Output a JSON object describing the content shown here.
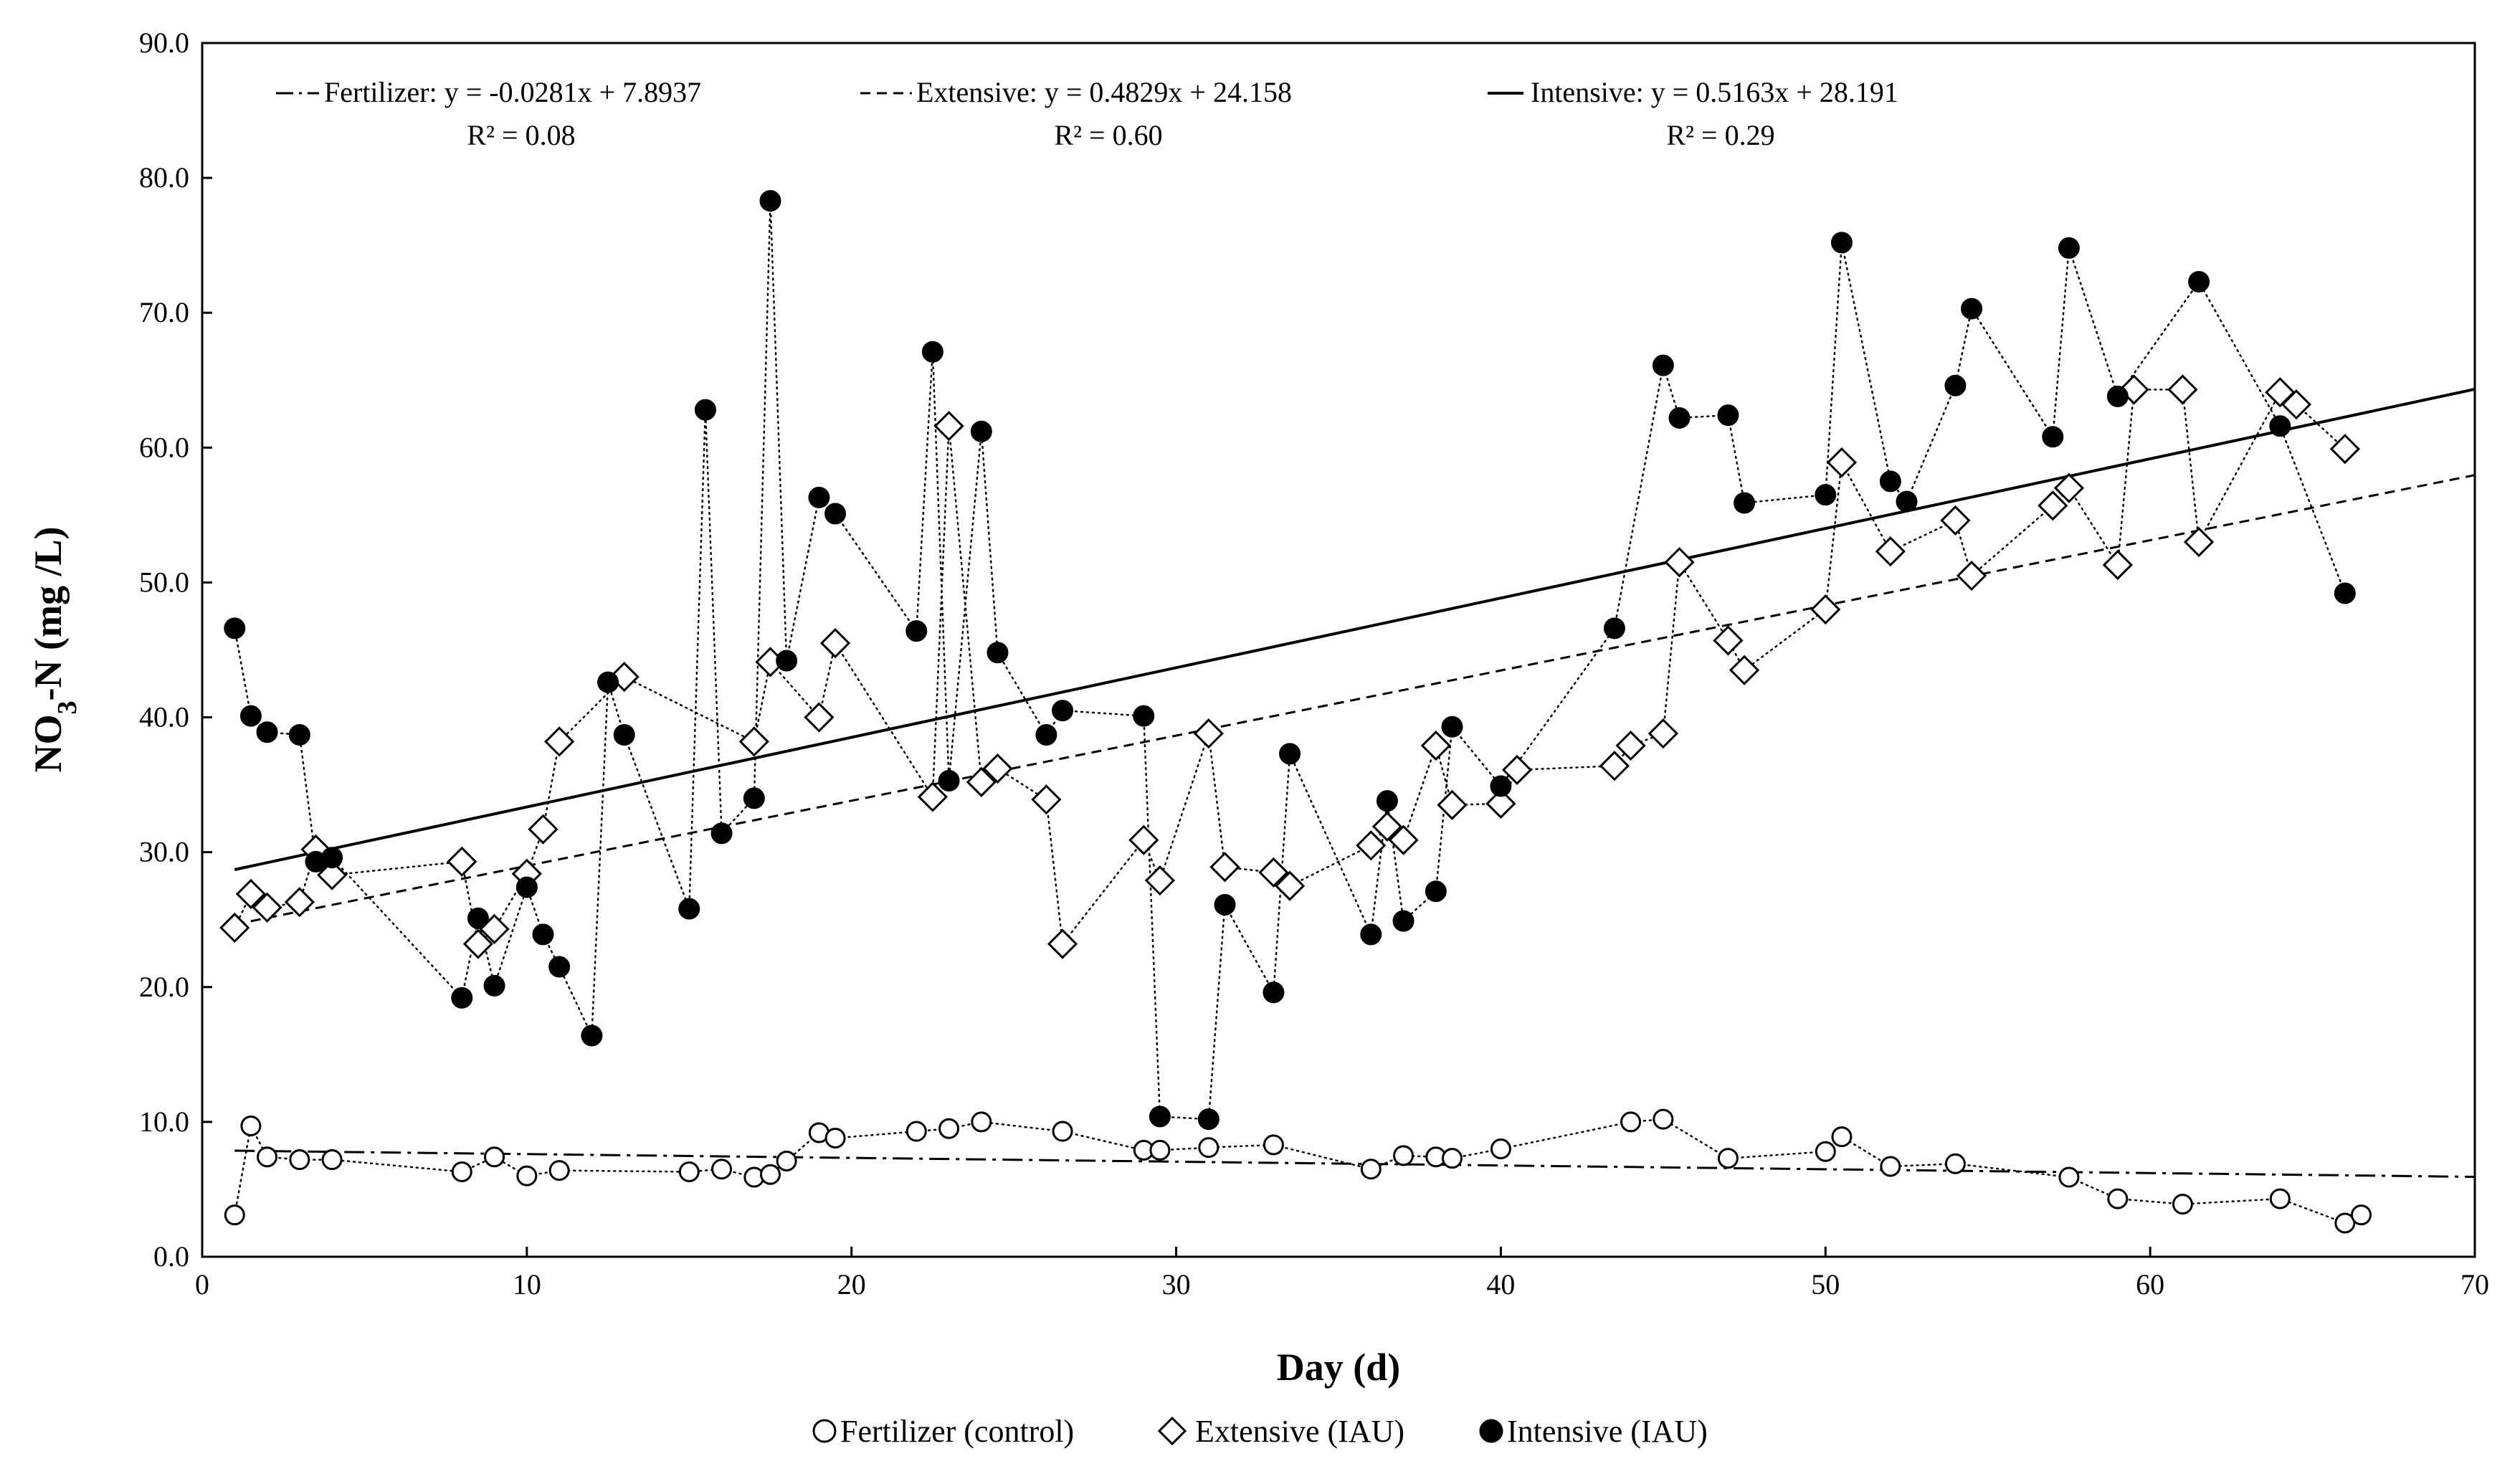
{
  "chart_data": {
    "type": "scatter",
    "title": "",
    "xlabel": "Day (d)",
    "ylabel": "NO₃-N (mg /L)",
    "ylabel_main": "NO",
    "ylabel_sub": "3",
    "ylabel_rest": "-N (mg /L)",
    "xlim": [
      0,
      70
    ],
    "ylim": [
      0,
      90
    ],
    "x_ticks": [
      "0",
      "10",
      "20",
      "30",
      "40",
      "50",
      "60",
      "70"
    ],
    "y_ticks": [
      "0.0",
      "10.0",
      "20.0",
      "30.0",
      "40.0",
      "50.0",
      "60.0",
      "70.0",
      "80.0",
      "90.0"
    ],
    "grid": false,
    "legend_position": "bottom",
    "colors": {
      "axis": "#000000",
      "marker_fill_open": "#ffffff",
      "marker_fill_solid": "#000000"
    },
    "series": [
      {
        "name": "Fertilizer (control)",
        "marker": "circle-open",
        "points": [
          {
            "x": 1.0,
            "y": 3.1
          },
          {
            "x": 1.5,
            "y": 9.7
          },
          {
            "x": 2.0,
            "y": 7.4
          },
          {
            "x": 3.0,
            "y": 7.2
          },
          {
            "x": 4.0,
            "y": 7.2
          },
          {
            "x": 8.0,
            "y": 6.3
          },
          {
            "x": 9.0,
            "y": 7.4
          },
          {
            "x": 10.0,
            "y": 6.0
          },
          {
            "x": 11.0,
            "y": 6.4
          },
          {
            "x": 15.0,
            "y": 6.3
          },
          {
            "x": 16.0,
            "y": 6.5
          },
          {
            "x": 17.0,
            "y": 5.9
          },
          {
            "x": 17.5,
            "y": 6.1
          },
          {
            "x": 18.0,
            "y": 7.1
          },
          {
            "x": 19.0,
            "y": 9.2
          },
          {
            "x": 19.5,
            "y": 8.8
          },
          {
            "x": 22.0,
            "y": 9.3
          },
          {
            "x": 23.0,
            "y": 9.5
          },
          {
            "x": 24.0,
            "y": 10.0
          },
          {
            "x": 26.5,
            "y": 9.3
          },
          {
            "x": 29.0,
            "y": 7.9
          },
          {
            "x": 29.5,
            "y": 7.9
          },
          {
            "x": 31.0,
            "y": 8.1
          },
          {
            "x": 33.0,
            "y": 8.3
          },
          {
            "x": 36.0,
            "y": 6.5
          },
          {
            "x": 37.0,
            "y": 7.5
          },
          {
            "x": 38.0,
            "y": 7.4
          },
          {
            "x": 38.5,
            "y": 7.3
          },
          {
            "x": 40.0,
            "y": 8.0
          },
          {
            "x": 44.0,
            "y": 10.0
          },
          {
            "x": 45.0,
            "y": 10.2
          },
          {
            "x": 47.0,
            "y": 7.3
          },
          {
            "x": 50.0,
            "y": 7.8
          },
          {
            "x": 50.5,
            "y": 8.9
          },
          {
            "x": 52.0,
            "y": 6.7
          },
          {
            "x": 54.0,
            "y": 6.9
          },
          {
            "x": 57.5,
            "y": 5.9
          },
          {
            "x": 59.0,
            "y": 4.3
          },
          {
            "x": 61.0,
            "y": 3.9
          },
          {
            "x": 64.0,
            "y": 4.3
          },
          {
            "x": 66.0,
            "y": 2.5
          },
          {
            "x": 66.5,
            "y": 3.1
          }
        ],
        "trend": {
          "slope": -0.0281,
          "intercept": 7.8937,
          "style": "dash-dot",
          "x_range": [
            1,
            70
          ]
        }
      },
      {
        "name": "Extensive (IAU)",
        "marker": "diamond-open",
        "points": [
          {
            "x": 1.0,
            "y": 24.4
          },
          {
            "x": 1.5,
            "y": 26.9
          },
          {
            "x": 2.0,
            "y": 25.9
          },
          {
            "x": 3.0,
            "y": 26.3
          },
          {
            "x": 3.5,
            "y": 30.2
          },
          {
            "x": 4.0,
            "y": 28.3
          },
          {
            "x": 8.0,
            "y": 29.3
          },
          {
            "x": 8.5,
            "y": 23.2
          },
          {
            "x": 9.0,
            "y": 24.3
          },
          {
            "x": 10.0,
            "y": 28.4
          },
          {
            "x": 10.5,
            "y": 31.7
          },
          {
            "x": 11.0,
            "y": 38.2
          },
          {
            "x": 13.0,
            "y": 43.0
          },
          {
            "x": 17.0,
            "y": 38.2
          },
          {
            "x": 17.5,
            "y": 44.1
          },
          {
            "x": 19.0,
            "y": 40.0
          },
          {
            "x": 19.5,
            "y": 45.5
          },
          {
            "x": 22.5,
            "y": 34.1
          },
          {
            "x": 23.0,
            "y": 61.6
          },
          {
            "x": 24.0,
            "y": 35.2
          },
          {
            "x": 24.5,
            "y": 36.2
          },
          {
            "x": 26.0,
            "y": 33.9
          },
          {
            "x": 26.5,
            "y": 23.2
          },
          {
            "x": 29.0,
            "y": 30.9
          },
          {
            "x": 29.5,
            "y": 27.9
          },
          {
            "x": 31.0,
            "y": 38.8
          },
          {
            "x": 31.5,
            "y": 28.9
          },
          {
            "x": 33.0,
            "y": 28.5
          },
          {
            "x": 33.5,
            "y": 27.5
          },
          {
            "x": 36.0,
            "y": 30.5
          },
          {
            "x": 36.5,
            "y": 31.9
          },
          {
            "x": 37.0,
            "y": 30.9
          },
          {
            "x": 38.0,
            "y": 37.9
          },
          {
            "x": 38.5,
            "y": 33.5
          },
          {
            "x": 40.0,
            "y": 33.6
          },
          {
            "x": 40.5,
            "y": 36.1
          },
          {
            "x": 43.5,
            "y": 36.4
          },
          {
            "x": 44.0,
            "y": 37.9
          },
          {
            "x": 45.0,
            "y": 38.8
          },
          {
            "x": 45.5,
            "y": 51.5
          },
          {
            "x": 47.0,
            "y": 45.7
          },
          {
            "x": 47.5,
            "y": 43.5
          },
          {
            "x": 50.0,
            "y": 48.0
          },
          {
            "x": 50.5,
            "y": 58.9
          },
          {
            "x": 52.0,
            "y": 52.3
          },
          {
            "x": 54.0,
            "y": 54.6
          },
          {
            "x": 54.5,
            "y": 50.5
          },
          {
            "x": 57.0,
            "y": 55.7
          },
          {
            "x": 57.5,
            "y": 57.0
          },
          {
            "x": 59.0,
            "y": 51.3
          },
          {
            "x": 59.5,
            "y": 64.3
          },
          {
            "x": 61.0,
            "y": 64.3
          },
          {
            "x": 61.5,
            "y": 53.0
          },
          {
            "x": 64.0,
            "y": 64.1
          },
          {
            "x": 64.5,
            "y": 63.2
          },
          {
            "x": 66.0,
            "y": 59.9
          }
        ],
        "trend": {
          "slope": 0.4829,
          "intercept": 24.158,
          "style": "dashed",
          "x_range": [
            1,
            70
          ]
        }
      },
      {
        "name": "Intensive (IAU)",
        "marker": "circle-filled",
        "points": [
          {
            "x": 1.0,
            "y": 46.6
          },
          {
            "x": 1.5,
            "y": 40.1
          },
          {
            "x": 2.0,
            "y": 38.9
          },
          {
            "x": 3.0,
            "y": 38.7
          },
          {
            "x": 3.5,
            "y": 29.3
          },
          {
            "x": 4.0,
            "y": 29.6
          },
          {
            "x": 8.0,
            "y": 19.2
          },
          {
            "x": 8.5,
            "y": 25.1
          },
          {
            "x": 9.0,
            "y": 20.1
          },
          {
            "x": 10.0,
            "y": 27.4
          },
          {
            "x": 10.5,
            "y": 23.9
          },
          {
            "x": 11.0,
            "y": 21.5
          },
          {
            "x": 12.0,
            "y": 16.4
          },
          {
            "x": 12.5,
            "y": 42.6
          },
          {
            "x": 13.0,
            "y": 38.7
          },
          {
            "x": 15.0,
            "y": 25.8
          },
          {
            "x": 15.5,
            "y": 62.8
          },
          {
            "x": 16.0,
            "y": 31.4
          },
          {
            "x": 17.0,
            "y": 34.0
          },
          {
            "x": 17.5,
            "y": 78.3
          },
          {
            "x": 18.0,
            "y": 44.2
          },
          {
            "x": 19.0,
            "y": 56.3
          },
          {
            "x": 19.5,
            "y": 55.1
          },
          {
            "x": 22.0,
            "y": 46.4
          },
          {
            "x": 22.5,
            "y": 67.1
          },
          {
            "x": 23.0,
            "y": 35.3
          },
          {
            "x": 24.0,
            "y": 61.2
          },
          {
            "x": 24.5,
            "y": 44.8
          },
          {
            "x": 26.0,
            "y": 38.7
          },
          {
            "x": 26.5,
            "y": 40.5
          },
          {
            "x": 29.0,
            "y": 40.1
          },
          {
            "x": 29.5,
            "y": 10.4
          },
          {
            "x": 31.0,
            "y": 10.2
          },
          {
            "x": 31.5,
            "y": 26.1
          },
          {
            "x": 33.0,
            "y": 19.6
          },
          {
            "x": 33.5,
            "y": 37.3
          },
          {
            "x": 36.0,
            "y": 23.9
          },
          {
            "x": 36.5,
            "y": 33.8
          },
          {
            "x": 37.0,
            "y": 24.9
          },
          {
            "x": 38.0,
            "y": 27.1
          },
          {
            "x": 38.5,
            "y": 39.3
          },
          {
            "x": 40.0,
            "y": 34.9
          },
          {
            "x": 43.5,
            "y": 46.6
          },
          {
            "x": 45.0,
            "y": 66.1
          },
          {
            "x": 45.5,
            "y": 62.2
          },
          {
            "x": 47.0,
            "y": 62.4
          },
          {
            "x": 47.5,
            "y": 55.9
          },
          {
            "x": 50.0,
            "y": 56.5
          },
          {
            "x": 50.5,
            "y": 75.2
          },
          {
            "x": 52.0,
            "y": 57.5
          },
          {
            "x": 52.5,
            "y": 56.0
          },
          {
            "x": 54.0,
            "y": 64.6
          },
          {
            "x": 54.5,
            "y": 70.3
          },
          {
            "x": 57.0,
            "y": 60.8
          },
          {
            "x": 57.5,
            "y": 74.8
          },
          {
            "x": 59.0,
            "y": 63.8
          },
          {
            "x": 61.5,
            "y": 72.3
          },
          {
            "x": 64.0,
            "y": 61.6
          },
          {
            "x": 66.0,
            "y": 49.2
          }
        ],
        "trend": {
          "slope": 0.5163,
          "intercept": 28.191,
          "style": "solid",
          "x_range": [
            1,
            70
          ]
        }
      }
    ],
    "annotations": [
      {
        "eq": "Fertilizer: y = -0.0281x + 7.8937",
        "r2": "R² = 0.08"
      },
      {
        "eq": "Extensive: y = 0.4829x + 24.158",
        "r2": "R² = 0.60"
      },
      {
        "eq": "Intensive: y = 0.5163x + 28.191",
        "r2": "R² = 0.29"
      }
    ],
    "legend": [
      {
        "label": "Fertilizer (control)",
        "marker": "circle-open"
      },
      {
        "label": "Extensive (IAU)",
        "marker": "diamond-open"
      },
      {
        "label": "Intensive (IAU)",
        "marker": "circle-filled"
      }
    ]
  }
}
